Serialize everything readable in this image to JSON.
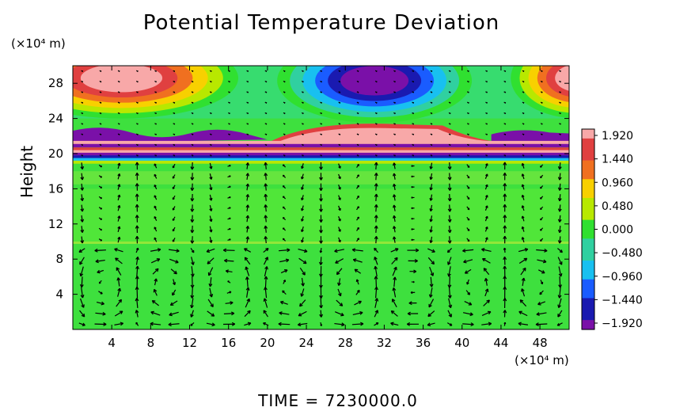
{
  "figure": {
    "title": "Potential Temperature Deviation",
    "y_unit": "(×10⁴ m)",
    "x_unit": "(×10⁴ m)",
    "time_label": "TIME  =  7230000.0"
  },
  "chart_data": {
    "type": "heatmap",
    "title": "Potential Temperature Deviation",
    "xlabel": "",
    "ylabel": "Height",
    "x_unit": "(×10⁴ m)",
    "y_unit": "(×10⁴ m)",
    "xlim": [
      0,
      51
    ],
    "ylim": [
      0,
      30
    ],
    "x_ticks": [
      4,
      8,
      12,
      16,
      20,
      24,
      28,
      32,
      36,
      40,
      44,
      48
    ],
    "y_ticks": [
      4,
      8,
      12,
      16,
      20,
      24,
      28
    ],
    "overlay": "wind vectors",
    "colorbar": {
      "ticks": [
        "1.920",
        "1.440",
        "0.960",
        "0.480",
        "0.000",
        "−0.480",
        "−0.960",
        "−1.440",
        "−1.920"
      ],
      "vmin": -1.92,
      "vmax": 1.92,
      "colors": [
        "#f8a8a8",
        "#e04040",
        "#f07020",
        "#f8d000",
        "#b8e800",
        "#30e030",
        "#30d0a0",
        "#18c0f0",
        "#1a5cff",
        "#1a1ab0",
        "#7a10a8"
      ]
    },
    "regions": [
      {
        "name": "upper-left warm anomaly",
        "value": 1.92,
        "x_range": [
          0,
          12
        ],
        "y_range": [
          26,
          30
        ]
      },
      {
        "name": "upper cold anomaly",
        "value": -1.92,
        "x_range": [
          24,
          38
        ],
        "y_range": [
          25,
          30
        ]
      },
      {
        "name": "upper-right warm anomaly",
        "value": 1.92,
        "x_range": [
          46,
          51
        ],
        "y_range": [
          26,
          30
        ]
      },
      {
        "name": "mid warm layer",
        "value": 1.92,
        "x_range": [
          22,
          41
        ],
        "y_range": [
          21,
          23
        ]
      },
      {
        "name": "cold layer",
        "value": -1.92,
        "x_range": [
          0,
          51
        ],
        "y_range": [
          19.8,
          21
        ]
      }
    ],
    "time": 7230000.0
  }
}
